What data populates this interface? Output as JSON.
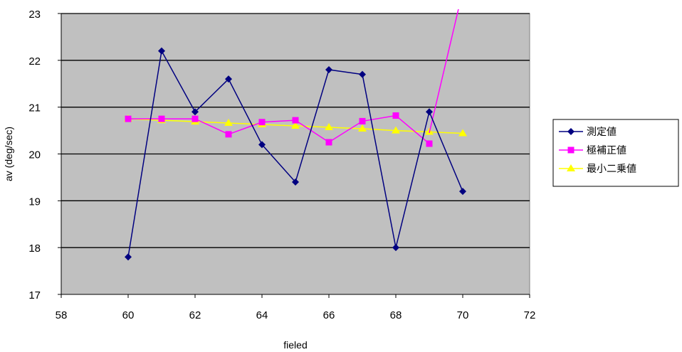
{
  "chart_data": {
    "type": "scatter",
    "xlabel": "fieled",
    "ylabel": "av (deg/sec)",
    "xlim": [
      58,
      72
    ],
    "ylim": [
      17,
      23
    ],
    "xticks": [
      58,
      60,
      62,
      64,
      66,
      68,
      70,
      72
    ],
    "yticks": [
      17,
      18,
      19,
      20,
      21,
      22,
      23
    ],
    "grid": "horizontal",
    "legend": "right",
    "plot_background": "#c0c0c0",
    "series": [
      {
        "name": "測定値",
        "color": "#000080",
        "marker": "diamond",
        "x": [
          60,
          61,
          62,
          63,
          64,
          65,
          66,
          67,
          68,
          69,
          70
        ],
        "y": [
          17.8,
          22.2,
          20.9,
          21.6,
          20.2,
          19.4,
          21.8,
          21.7,
          18.0,
          20.9,
          19.2
        ]
      },
      {
        "name": "極補正値",
        "color": "#ff00ff",
        "marker": "square",
        "x": [
          60,
          61,
          62,
          63,
          64,
          65,
          66,
          67,
          68,
          69
        ],
        "y": [
          20.75,
          20.75,
          20.75,
          20.42,
          20.68,
          20.72,
          20.25,
          20.7,
          20.82,
          20.22
        ],
        "extra_line": {
          "x": [
            69,
            70.5
          ],
          "y": [
            20.45,
            25.0
          ]
        }
      },
      {
        "name": "最小二乗値",
        "color": "#ffff00",
        "marker": "triangle",
        "x": [
          60,
          61,
          62,
          63,
          64,
          65,
          66,
          67,
          68,
          69,
          70
        ],
        "y": [
          20.75,
          20.72,
          20.69,
          20.66,
          20.63,
          20.6,
          20.57,
          20.54,
          20.5,
          20.47,
          20.44
        ]
      }
    ]
  }
}
